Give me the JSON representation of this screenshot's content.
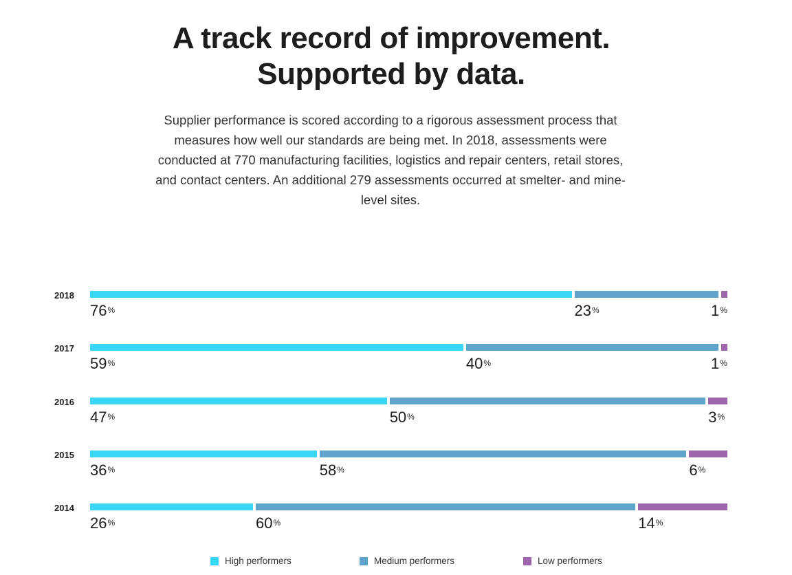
{
  "header": {
    "title_line1": "A track record of improvement.",
    "title_line2": "Supported by data.",
    "intro": "Supplier performance is scored according to a rigorous assessment process that measures how well our standards are being met. In 2018, assessments were conducted at 770 manufacturing facilities, logistics and repair centers, retail stores, and contact centers. An additional 279 assessments occurred at smelter- and mine-level sites."
  },
  "chart_data": {
    "type": "bar",
    "orientation": "horizontal-stacked",
    "categories": [
      "2018",
      "2017",
      "2016",
      "2015",
      "2014"
    ],
    "series": [
      {
        "name": "High performers",
        "color": "#3ad6f7",
        "values": [
          76,
          59,
          47,
          36,
          26
        ]
      },
      {
        "name": "Medium performers",
        "color": "#5fa4cb",
        "values": [
          23,
          40,
          50,
          58,
          60
        ]
      },
      {
        "name": "Low performers",
        "color": "#9e65ad",
        "values": [
          1,
          1,
          3,
          6,
          14
        ]
      }
    ],
    "unit": "%",
    "xlim": [
      0,
      100
    ],
    "legend_position": "bottom"
  }
}
